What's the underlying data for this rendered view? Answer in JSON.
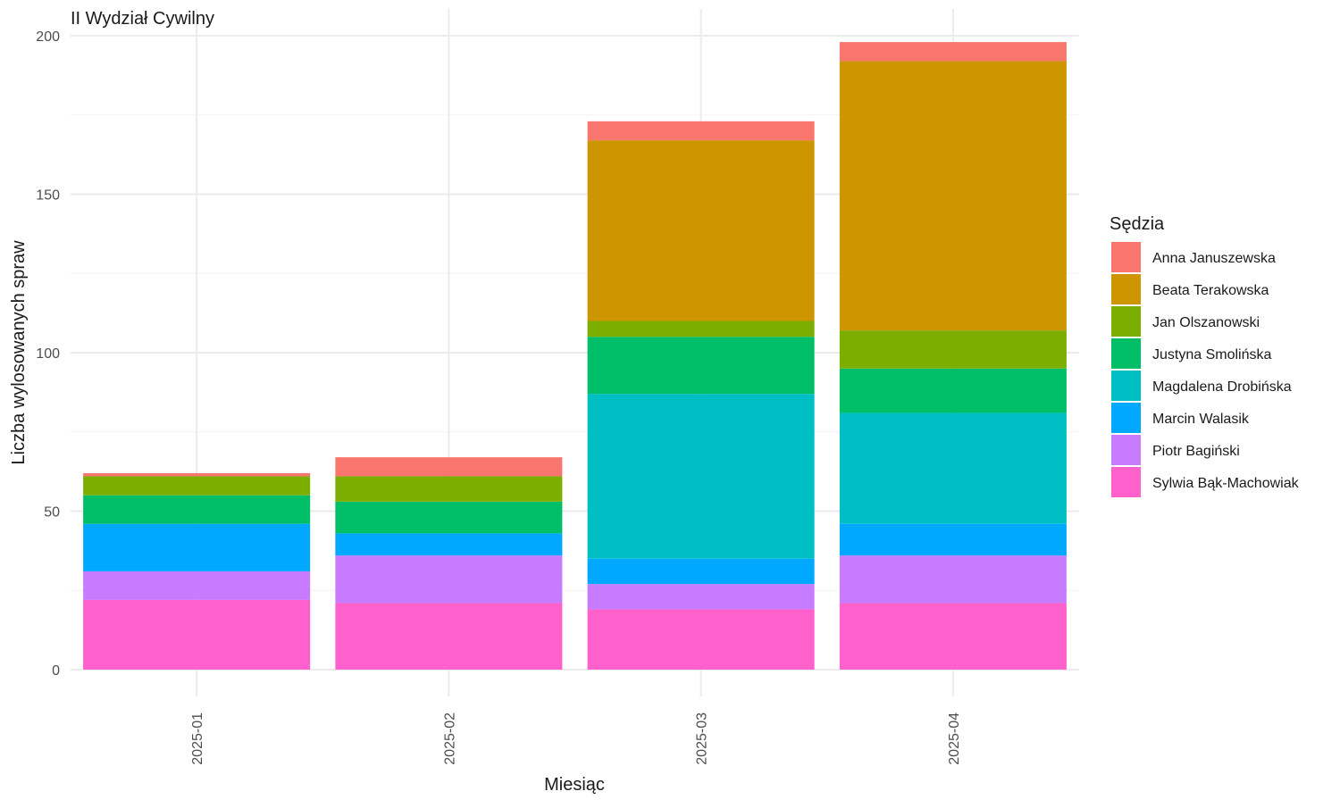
{
  "chart_data": {
    "type": "bar",
    "stacked": true,
    "title": "II Wydział Cywilny",
    "xlabel": "Miesiąc",
    "ylabel": "Liczba wylosowanych spraw",
    "ylim": [
      0,
      200
    ],
    "yticks": [
      0,
      50,
      100,
      150,
      200
    ],
    "grid": true,
    "legend_title": "Sędzia",
    "legend_position": "right",
    "categories": [
      "2025-01",
      "2025-02",
      "2025-03",
      "2025-04"
    ],
    "series": [
      {
        "name": "Anna Januszewska",
        "color": "#F8766D",
        "values": [
          1,
          6,
          6,
          6
        ]
      },
      {
        "name": "Beata Terakowska",
        "color": "#CD9600",
        "values": [
          0,
          0,
          57,
          85
        ]
      },
      {
        "name": "Jan Olszanowski",
        "color": "#7CAE00",
        "values": [
          6,
          8,
          5,
          12
        ]
      },
      {
        "name": "Justyna Smolińska",
        "color": "#00BE67",
        "values": [
          9,
          10,
          18,
          14
        ]
      },
      {
        "name": "Magdalena Drobińska",
        "color": "#00BFC4",
        "values": [
          0,
          0,
          52,
          35
        ]
      },
      {
        "name": "Marcin Walasik",
        "color": "#00A9FF",
        "values": [
          15,
          7,
          8,
          10
        ]
      },
      {
        "name": "Piotr Bagiński",
        "color": "#C77CFF",
        "values": [
          9,
          15,
          8,
          15
        ]
      },
      {
        "name": "Sylwia Bąk-Machowiak",
        "color": "#FF61CC",
        "values": [
          22,
          21,
          19,
          21
        ]
      }
    ]
  }
}
